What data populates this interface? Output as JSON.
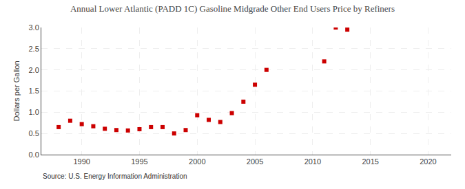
{
  "chart_data": {
    "type": "scatter",
    "title": "Annual Lower Atlantic (PADD 1C) Gasoline Midgrade Other End Users Price by Refiners",
    "y_label": "Dollars per Gallon",
    "annotations": [
      "Source: U.S. Energy Information Administration"
    ],
    "x": [
      1988,
      1989,
      1990,
      1991,
      1992,
      1993,
      1994,
      1995,
      1996,
      1997,
      1998,
      1999,
      2000,
      2001,
      2002,
      2003,
      2004,
      2005,
      2006,
      2011,
      2012,
      2013
    ],
    "values": [
      0.65,
      0.8,
      0.72,
      0.67,
      0.61,
      0.58,
      0.57,
      0.6,
      0.65,
      0.65,
      0.5,
      0.58,
      0.93,
      0.82,
      0.77,
      0.98,
      1.25,
      1.65,
      2.0,
      2.2,
      3.0,
      2.95
    ],
    "color": "#cc0000",
    "marker": "square",
    "xlim": [
      1986.5,
      2022
    ],
    "xticks": [
      1990,
      1995,
      2000,
      2005,
      2010,
      2015,
      2020
    ],
    "ylim": [
      0.0,
      3.0
    ],
    "yticks": [
      {
        "value": 0.0,
        "label": "0.0"
      },
      0.5,
      {
        "value": 1.0,
        "label": "1.0"
      },
      1.5,
      {
        "value": 2.0,
        "label": "2.0"
      },
      2.5,
      {
        "value": 3.0,
        "label": "3.0"
      }
    ],
    "grid": true
  }
}
